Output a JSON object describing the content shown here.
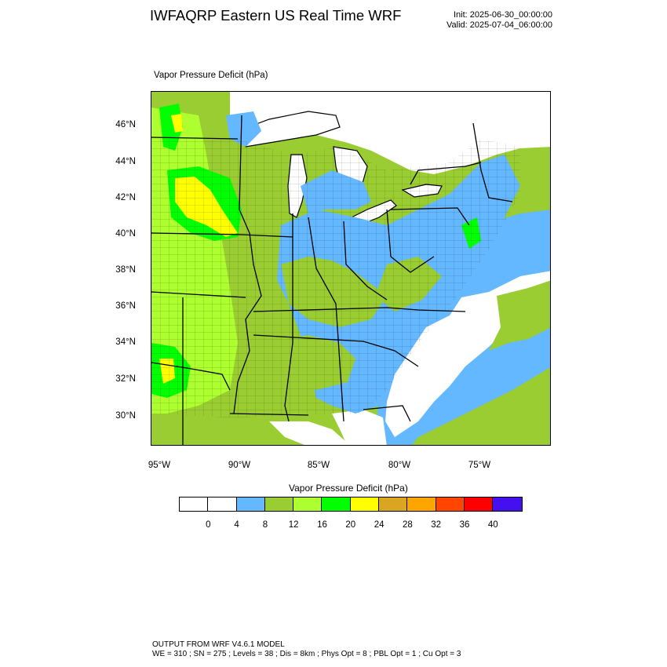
{
  "header": {
    "title": "IWFAQRP Eastern US Real Time WRF",
    "init": "Init: 2025-06-30_00:00:00",
    "valid": "Valid: 2025-07-04_06:00:00"
  },
  "map": {
    "field_label": "Vapor Pressure Deficit   (hPa)",
    "lat_labels": [
      "46°N",
      "44°N",
      "42°N",
      "40°N",
      "38°N",
      "36°N",
      "34°N",
      "32°N",
      "30°N"
    ],
    "lon_labels": [
      "95°W",
      "90°W",
      "85°W",
      "80°W",
      "75°W"
    ],
    "colors": {
      "land_base": "#9acd32",
      "water": "#ffffff",
      "low": "#63b8ff",
      "high_green": "#00ff00",
      "yellow": "#ffff00",
      "lime": "#adff2f",
      "border": "#000000"
    }
  },
  "colorbar": {
    "title": "Vapor Pressure Deficit  (hPa)",
    "colors": [
      "#ffffff",
      "#ffffff",
      "#63b8ff",
      "#9acd32",
      "#adff2f",
      "#00ff00",
      "#ffff00",
      "#daa520",
      "#ffa500",
      "#ff4500",
      "#ff0000",
      "#4410f0"
    ],
    "ticks": [
      "0",
      "4",
      "8",
      "12",
      "16",
      "20",
      "24",
      "28",
      "32",
      "36",
      "40"
    ]
  },
  "footer": {
    "line1": "OUTPUT FROM WRF V4.6.1 MODEL",
    "line2": "WE = 310 ; SN = 275 ; Levels = 38 ; Dis = 8km ; Phys Opt = 8 ; PBL Opt = 1 ; Cu Opt = 3"
  }
}
